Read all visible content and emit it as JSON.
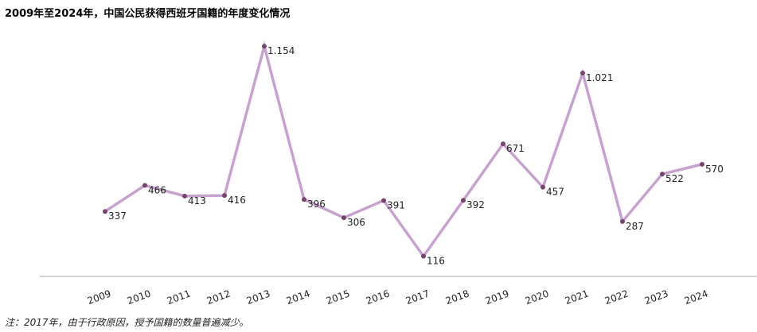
{
  "title": "2009年至2024年，中国公民获得西班牙国籍的年度变化情况",
  "footnote": "注：2017年，由于行政原因，授予国籍的数量普遍减少。",
  "colors": {
    "line": "#c7a2cf",
    "marker": "#74446f",
    "axis": "#a6a6a6"
  },
  "chart_data": {
    "type": "line",
    "title": "2009年至2024年，中国公民获得西班牙国籍的年度变化情况",
    "xlabel": "",
    "ylabel": "",
    "categories": [
      "2009",
      "2010",
      "2011",
      "2012",
      "2013",
      "2014",
      "2015",
      "2016",
      "2017",
      "2018",
      "2019",
      "2020",
      "2021",
      "2022",
      "2023",
      "2024"
    ],
    "values": [
      337,
      466,
      413,
      416,
      1154,
      396,
      306,
      391,
      116,
      392,
      671,
      457,
      1021,
      287,
      522,
      570
    ],
    "labels": [
      "337",
      "466",
      "413",
      "416",
      "1.154",
      "396",
      "306",
      "391",
      "116",
      "392",
      "671",
      "457",
      "1.021",
      "287",
      "522",
      "570"
    ],
    "ylim": [
      0,
      1250
    ],
    "grid": false,
    "legend": "none"
  }
}
